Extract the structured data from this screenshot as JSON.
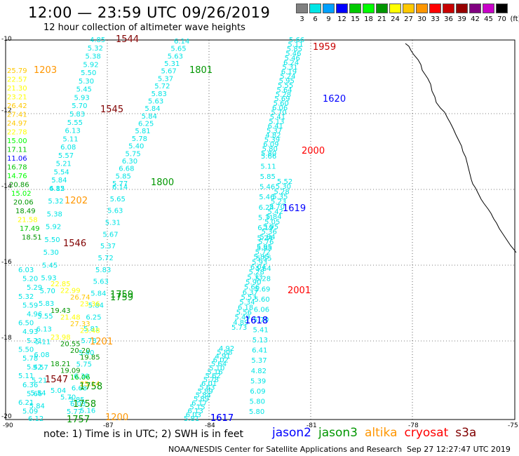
{
  "title": "12:00 — 23:59 UTC 09/26/2019",
  "subtitle": "12 hour collection of altimeter wave heights",
  "colorbar": {
    "unit": "(ft)",
    "labels": [
      "3",
      "6",
      "9",
      "12",
      "15",
      "18",
      "21",
      "24",
      "27",
      "30",
      "33",
      "36",
      "39",
      "42",
      "45",
      "70"
    ],
    "colors": [
      "#808080",
      "#00e5e5",
      "#00a0ff",
      "#0000ff",
      "#00c800",
      "#00ff00",
      "#009600",
      "#ffff00",
      "#ffc800",
      "#ff9600",
      "#ff0000",
      "#c80000",
      "#960000",
      "#800080",
      "#c800c8",
      "#000000"
    ]
  },
  "map": {
    "y_axis_labels": [
      "-10",
      "-12",
      "-14",
      "-16",
      "-18",
      "-20"
    ],
    "x_axis_labels": [
      "-90",
      "-87",
      "-84",
      "-81",
      "-78",
      "-75"
    ],
    "colors": {
      "coast": "#000000",
      "grid": "#000000",
      "tracks": "#00e5e5"
    }
  },
  "tracks": [
    {
      "name": "track-1544",
      "time": "1544",
      "time_color": "#800000",
      "time_pos": "top",
      "values": [
        "4.85",
        "5.32",
        "5.38",
        "5.92",
        "5.50",
        "5.30",
        "5.45",
        "5.93",
        "5.70",
        "5.83",
        "5.55",
        "6.13",
        "5.11",
        "6.08",
        "5.57",
        "5.21",
        "5.54",
        "5.84",
        "6.12"
      ]
    },
    {
      "name": "track-1801",
      "time": "1801",
      "time_color": "#009600",
      "values": [
        "6.14",
        "5.65",
        "5.63",
        "5.31",
        "5.67",
        "5.37",
        "5.72",
        "5.83",
        "5.63",
        "5.84",
        "5.84",
        "6.25",
        "5.81",
        "5.78",
        "5.40",
        "5.75",
        "6.30",
        "6.68",
        "5.85",
        "5.77"
      ]
    },
    {
      "name": "track-1959",
      "time": "1959",
      "time_color": "#c80000",
      "values": [
        "5.66",
        "5.11",
        "5.85",
        "5.46",
        "5.46",
        "6.24",
        "5.31",
        "6.19",
        "5.24",
        "5.95",
        "5.55",
        "5.64",
        "5.28",
        "5.69",
        "5.60",
        "6.06",
        "5.70",
        "5.41",
        "5.13",
        "6.41",
        "5.37",
        "4.82",
        "5.39",
        "6.09",
        "5.80",
        "5.80"
      ]
    },
    {
      "name": "track-1618",
      "time": "1618",
      "time_color": "#0000ff",
      "values": [
        "5.52",
        "5.30",
        "5.28",
        "5.35",
        "5.23",
        "5.70",
        "5.42",
        "5.84",
        "5.05",
        "5.95",
        "5.36",
        "5.84",
        "5.76",
        "5.95",
        "5.72",
        "5.85",
        "5.93",
        "6.04",
        "5.28",
        "5.33",
        "5.90",
        "5.66",
        "6.37",
        "5.53",
        "5.34",
        "6.18",
        "5.56",
        "5.49",
        "4.89",
        "5.73"
      ]
    },
    {
      "name": "track-1617",
      "time": "1617",
      "time_color": "#0000ff",
      "values": [
        "4.92",
        "5.88",
        "4.91",
        "6.02",
        "5.64",
        "5.10",
        "5.16",
        "5.62",
        "5.78",
        "6.01",
        "5.63",
        "5.89",
        "5.84",
        "5.89",
        "6.17",
        "5.15",
        "6.13",
        "6.03",
        "5.81"
      ]
    }
  ],
  "west_column": {
    "values": [
      {
        "v": "25.79",
        "c": "#ffc800"
      },
      {
        "v": "22.57",
        "c": "#ffff00"
      },
      {
        "v": "21.30",
        "c": "#ffff00"
      },
      {
        "v": "23.21",
        "c": "#ffff00"
      },
      {
        "v": "26.42",
        "c": "#ffc800"
      },
      {
        "v": "27.41",
        "c": "#ffc800"
      },
      {
        "v": "24.97",
        "c": "#ffc800"
      },
      {
        "v": "22.78",
        "c": "#ffff00"
      },
      {
        "v": "15.00",
        "c": "#00ff00"
      },
      {
        "v": "17.11",
        "c": "#00c800"
      },
      {
        "v": "11.06",
        "c": "#0000ff"
      },
      {
        "v": "16.78",
        "c": "#00c800"
      },
      {
        "v": "14.76",
        "c": "#00ff00"
      },
      {
        "v": "20.86",
        "c": "#009600"
      },
      {
        "v": "15.02",
        "c": "#00ff00"
      },
      {
        "v": "20.06",
        "c": "#009600"
      },
      {
        "v": "18.49",
        "c": "#009600"
      },
      {
        "v": "21.58",
        "c": "#ffff00"
      },
      {
        "v": "17.49",
        "c": "#00c800"
      },
      {
        "v": "18.51",
        "c": "#009600"
      }
    ]
  },
  "sw_column": {
    "values": [
      {
        "v": "6.03",
        "c": "#00e5e5"
      },
      {
        "v": "5.20",
        "c": "#00e5e5"
      },
      {
        "v": "5.29",
        "c": "#00e5e5"
      },
      {
        "v": "5.32",
        "c": "#00e5e5"
      },
      {
        "v": "5.59",
        "c": "#00e5e5"
      },
      {
        "v": "4.96",
        "c": "#00e5e5"
      },
      {
        "v": "6.50",
        "c": "#00e5e5"
      },
      {
        "v": "4.93",
        "c": "#00e5e5"
      },
      {
        "v": "5.21",
        "c": "#00e5e5"
      },
      {
        "v": "5.50",
        "c": "#00e5e5"
      },
      {
        "v": "5.78",
        "c": "#00e5e5"
      },
      {
        "v": "5.42",
        "c": "#00e5e5"
      },
      {
        "v": "5.11",
        "c": "#00e5e5"
      },
      {
        "v": "6.36",
        "c": "#00e5e5"
      },
      {
        "v": "5.66",
        "c": "#00e5e5"
      },
      {
        "v": "6.21",
        "c": "#00e5e5"
      },
      {
        "v": "5.09",
        "c": "#00e5e5"
      }
    ]
  },
  "mid_labels": [
    {
      "v": "22.85",
      "c": "#ffff00"
    },
    {
      "v": "22.99",
      "c": "#ffff00"
    },
    {
      "v": "26.74",
      "c": "#ffc800"
    },
    {
      "v": "23.36",
      "c": "#ffff00"
    },
    {
      "v": "19.43",
      "c": "#009600"
    },
    {
      "v": "21.48",
      "c": "#ffff00"
    },
    {
      "v": "27.33",
      "c": "#ffc800"
    },
    {
      "v": "23.48",
      "c": "#ffff00"
    },
    {
      "v": "23.98",
      "c": "#ffff00"
    },
    {
      "v": "20.55",
      "c": "#009600"
    },
    {
      "v": "20.20",
      "c": "#009600"
    },
    {
      "v": "19.85",
      "c": "#009600"
    },
    {
      "v": "18.21",
      "c": "#009600"
    },
    {
      "v": "19.09",
      "c": "#009600"
    },
    {
      "v": "16.06",
      "c": "#00c800"
    },
    {
      "v": "25.14",
      "c": "#ffc800"
    },
    {
      "v": "5.04",
      "c": "#00e5e5"
    },
    {
      "v": "5.70",
      "c": "#00e5e5"
    },
    {
      "v": "6.03",
      "c": "#00e5e5"
    },
    {
      "v": "5.16",
      "c": "#00e5e5"
    }
  ],
  "time_labels": [
    {
      "t": "1203",
      "c": "#ff9600"
    },
    {
      "t": "1545",
      "c": "#800000"
    },
    {
      "t": "1620",
      "c": "#0000ff"
    },
    {
      "t": "2000",
      "c": "#ff0000"
    },
    {
      "t": "1800",
      "c": "#009600"
    },
    {
      "t": "1202",
      "c": "#ff9600"
    },
    {
      "t": "1619",
      "c": "#0000ff"
    },
    {
      "t": "1546",
      "c": "#800000"
    },
    {
      "t": "1759",
      "c": "#009600"
    },
    {
      "t": "1759",
      "c": "#009600"
    },
    {
      "t": "2001",
      "c": "#ff0000"
    },
    {
      "t": "1618",
      "c": "#0000ff"
    },
    {
      "t": "1201",
      "c": "#ff9600"
    },
    {
      "t": "1547",
      "c": "#800000"
    },
    {
      "t": "1758",
      "c": "#009600"
    },
    {
      "t": "1758",
      "c": "#009600"
    },
    {
      "t": "1757",
      "c": "#009600"
    },
    {
      "t": "1200",
      "c": "#ff9600"
    },
    {
      "t": "1617",
      "c": "#0000ff"
    }
  ],
  "footer": {
    "note": "note: 1) Time is in UTC; 2) SWH is in feet",
    "credit": "NOAA/NESDIS Center for Satellite Applications and Research",
    "timestamp": "Sep 27 12:27:47 UTC 2019"
  },
  "legend": [
    {
      "name": "jason2",
      "color": "#0000ff"
    },
    {
      "name": "jason3",
      "color": "#009600"
    },
    {
      "name": "altika",
      "color": "#ff9600"
    },
    {
      "name": "cryosat",
      "color": "#ff0000"
    },
    {
      "name": "s3a",
      "color": "#800000"
    }
  ]
}
